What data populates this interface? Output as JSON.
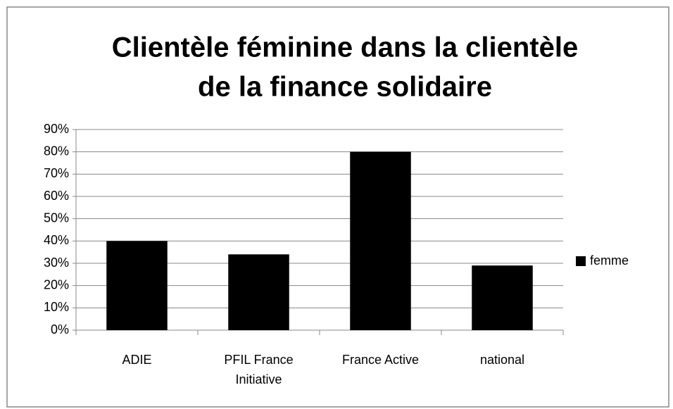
{
  "chart_data": {
    "type": "bar",
    "title": [
      "Clientèle féminine dans la clientèle",
      "de la finance solidaire"
    ],
    "categories": [
      "ADIE",
      "PFIL France Initiative",
      "France Active",
      "national"
    ],
    "series": [
      {
        "name": "femme",
        "color": "#000000",
        "values": [
          40,
          34,
          80,
          29
        ]
      }
    ],
    "ylim": [
      0,
      90
    ],
    "yticks": [
      {
        "value": 0,
        "label": "0%"
      },
      {
        "value": 10,
        "label": "10%"
      },
      {
        "value": 20,
        "label": "20%"
      },
      {
        "value": 30,
        "label": "30%"
      },
      {
        "value": 40,
        "label": "40%"
      },
      {
        "value": 50,
        "label": "50%"
      },
      {
        "value": 60,
        "label": "60%"
      },
      {
        "value": 70,
        "label": "70%"
      },
      {
        "value": 80,
        "label": "80%"
      },
      {
        "value": 90,
        "label": "90%"
      }
    ],
    "grid": true,
    "legend": "right"
  }
}
